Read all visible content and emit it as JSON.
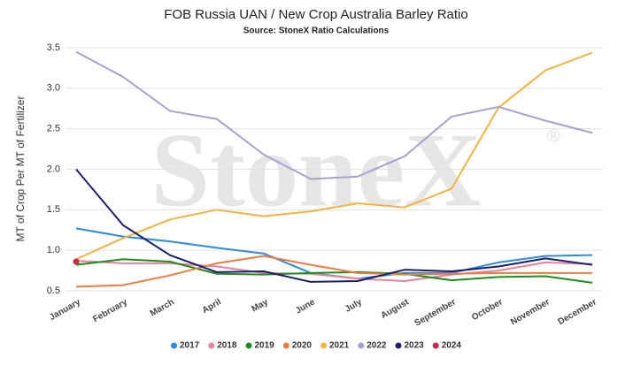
{
  "chart_data": {
    "type": "line",
    "title": "FOB Russia UAN / New Crop Australia Barley Ratio",
    "subtitle": "Source: StoneX Ratio Calculations",
    "y_label": "MT of Crop Per MT of Fertilizer",
    "watermark": "StoneX",
    "watermark_mark": "®",
    "categories": [
      "January",
      "February",
      "March",
      "April",
      "May",
      "June",
      "July",
      "August",
      "September",
      "October",
      "November",
      "December"
    ],
    "ylim": [
      0.5,
      3.5
    ],
    "yticks": [
      0.5,
      {
        "value": 1,
        "label": "1.0"
      },
      1.5,
      {
        "value": 2,
        "label": "2.0"
      },
      2.5,
      {
        "value": 3,
        "label": "3.0"
      },
      3.5
    ],
    "grid": true,
    "legend": "bottom",
    "series": [
      {
        "name": "2017",
        "color": "#2b8be0",
        "values": [
          1.27,
          1.17,
          1.11,
          1.03,
          0.96,
          0.72,
          0.65,
          0.72,
          0.72,
          0.85,
          0.93,
          0.94
        ]
      },
      {
        "name": "2018",
        "color": "#e8829b",
        "values": [
          0.87,
          0.84,
          0.84,
          0.8,
          0.72,
          0.71,
          0.65,
          0.62,
          0.7,
          0.75,
          0.85,
          0.83
        ]
      },
      {
        "name": "2019",
        "color": "#1e8c1e",
        "values": [
          0.82,
          0.89,
          0.86,
          0.71,
          0.7,
          0.72,
          0.73,
          0.71,
          0.63,
          0.67,
          0.68,
          0.6
        ]
      },
      {
        "name": "2020",
        "color": "#f07b3f",
        "values": [
          0.55,
          0.57,
          0.69,
          0.84,
          0.93,
          0.82,
          0.72,
          0.7,
          0.71,
          0.72,
          0.72,
          0.72
        ]
      },
      {
        "name": "2021",
        "color": "#f5b342",
        "values": [
          0.89,
          1.15,
          1.38,
          1.5,
          1.42,
          1.48,
          1.58,
          1.53,
          1.76,
          2.76,
          3.22,
          3.44
        ]
      },
      {
        "name": "2022",
        "color": "#a4a3cf",
        "values": [
          3.45,
          3.14,
          2.72,
          2.62,
          2.18,
          1.88,
          1.91,
          2.16,
          2.65,
          2.77,
          2.6,
          2.45
        ]
      },
      {
        "name": "2023",
        "color": "#1a1f6b",
        "values": [
          2.0,
          1.31,
          0.94,
          0.73,
          0.74,
          0.61,
          0.62,
          0.76,
          0.74,
          0.8,
          0.9,
          0.82
        ]
      },
      {
        "name": "2024",
        "color": "#c8284a",
        "values": [
          0.86,
          null,
          null,
          null,
          null,
          null,
          null,
          null,
          null,
          null,
          null,
          null
        ]
      }
    ]
  }
}
